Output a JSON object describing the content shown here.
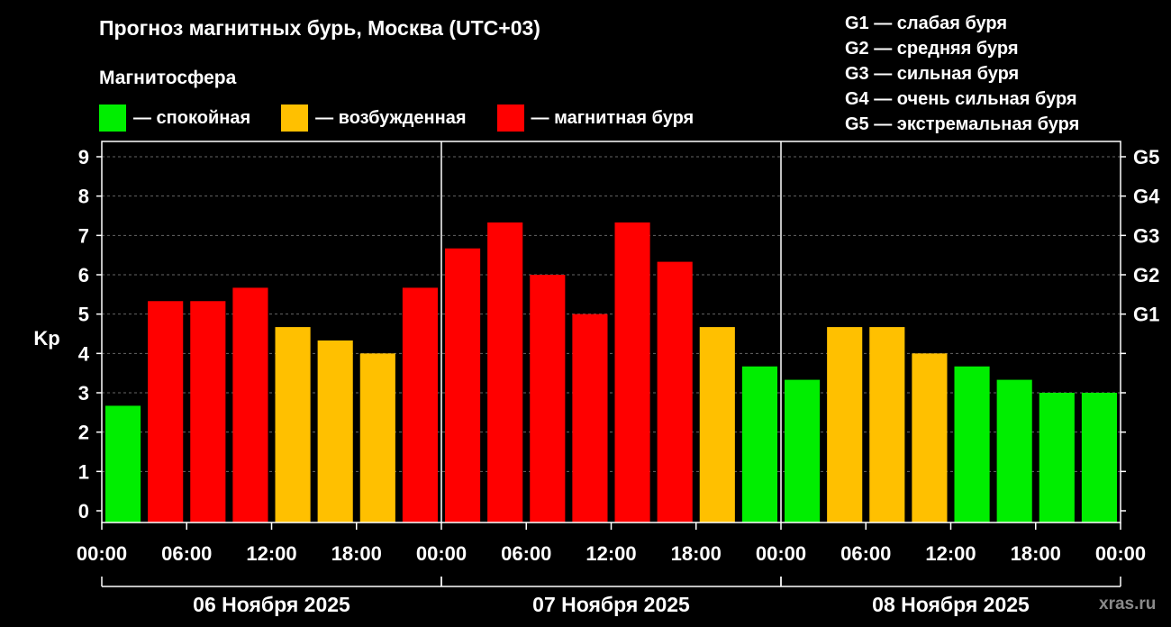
{
  "header": {
    "title": "Прогноз магнитных бурь, Москва (UTC+03)",
    "magnetosphere_label": "Магнитосфера"
  },
  "legend": {
    "items": [
      {
        "label": "— спокойная",
        "color": "#00ee00"
      },
      {
        "label": "— возбужденная",
        "color": "#ffc000"
      },
      {
        "label": "— магнитная буря",
        "color": "#ff0000"
      }
    ]
  },
  "storm_levels": {
    "items": [
      "G1 — слабая буря",
      "G2 — средняя буря",
      "G3 — сильная буря",
      "G4 — очень сильная буря",
      "G5 — экстремальная буря"
    ]
  },
  "watermark": "xras.ru",
  "chart_data": {
    "type": "bar",
    "title": "Прогноз магнитных бурь, Москва (UTC+03)",
    "ylabel": "Kp",
    "ylim": [
      0,
      9
    ],
    "y_ticks": [
      "0",
      "1",
      "2",
      "3",
      "4",
      "5",
      "6",
      "7",
      "8",
      "9"
    ],
    "right_ticks": [
      {
        "kp": 5,
        "label": "G1"
      },
      {
        "kp": 6,
        "label": "G2"
      },
      {
        "kp": 7,
        "label": "G3"
      },
      {
        "kp": 8,
        "label": "G4"
      },
      {
        "kp": 9,
        "label": "G5"
      }
    ],
    "x_tick_labels": [
      "00:00",
      "06:00",
      "12:00",
      "18:00",
      "00:00",
      "06:00",
      "12:00",
      "18:00",
      "00:00",
      "06:00",
      "12:00",
      "18:00",
      "00:00"
    ],
    "days": [
      "06 Ноября 2025",
      "07 Ноября 2025",
      "08 Ноября 2025"
    ],
    "grid": true,
    "values": [
      2.67,
      5.33,
      5.33,
      5.67,
      4.67,
      4.33,
      4.0,
      5.67,
      6.67,
      7.33,
      6.0,
      5.0,
      7.33,
      6.33,
      4.67,
      3.67,
      3.33,
      4.67,
      4.67,
      4.0,
      3.67,
      3.33,
      3.0,
      3.0
    ],
    "colors": [
      "#00ee00",
      "#ff0000",
      "#ff0000",
      "#ff0000",
      "#ffc000",
      "#ffc000",
      "#ffc000",
      "#ff0000",
      "#ff0000",
      "#ff0000",
      "#ff0000",
      "#ff0000",
      "#ff0000",
      "#ff0000",
      "#ffc000",
      "#00ee00",
      "#00ee00",
      "#ffc000",
      "#ffc000",
      "#ffc000",
      "#00ee00",
      "#00ee00",
      "#00ee00",
      "#00ee00"
    ]
  }
}
